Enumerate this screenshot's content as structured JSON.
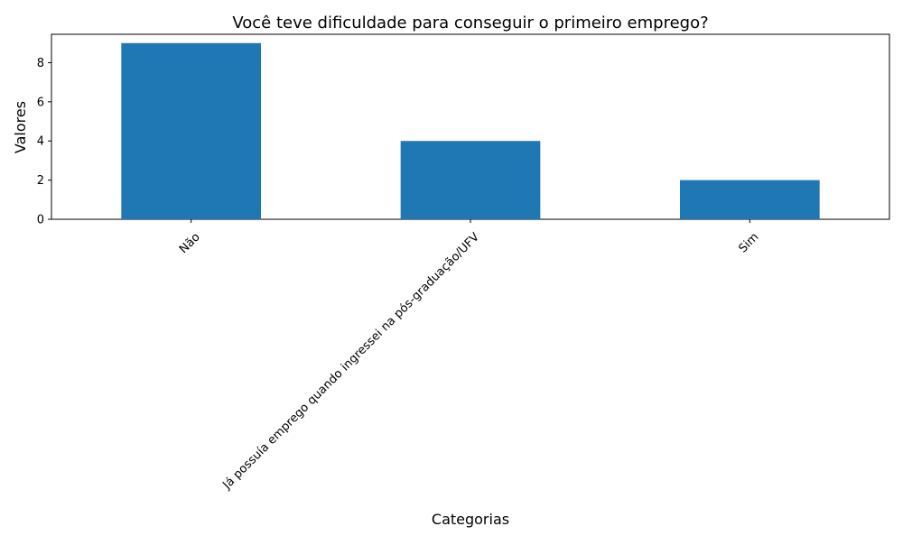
{
  "chart_data": {
    "type": "bar",
    "title": "Você teve dificuldade para conseguir o primeiro emprego?",
    "xlabel": "Categorias",
    "ylabel": "Valores",
    "categories": [
      "Não",
      "Já possuía emprego quando ingressei na pós-graduação/UFV",
      "Sim"
    ],
    "values": [
      9,
      4,
      2
    ],
    "ylim": [
      0,
      9.45
    ],
    "yticks": [
      0,
      2,
      4,
      6,
      8
    ],
    "bar_color": "#1f77b4",
    "grid": false,
    "legend": "none"
  }
}
